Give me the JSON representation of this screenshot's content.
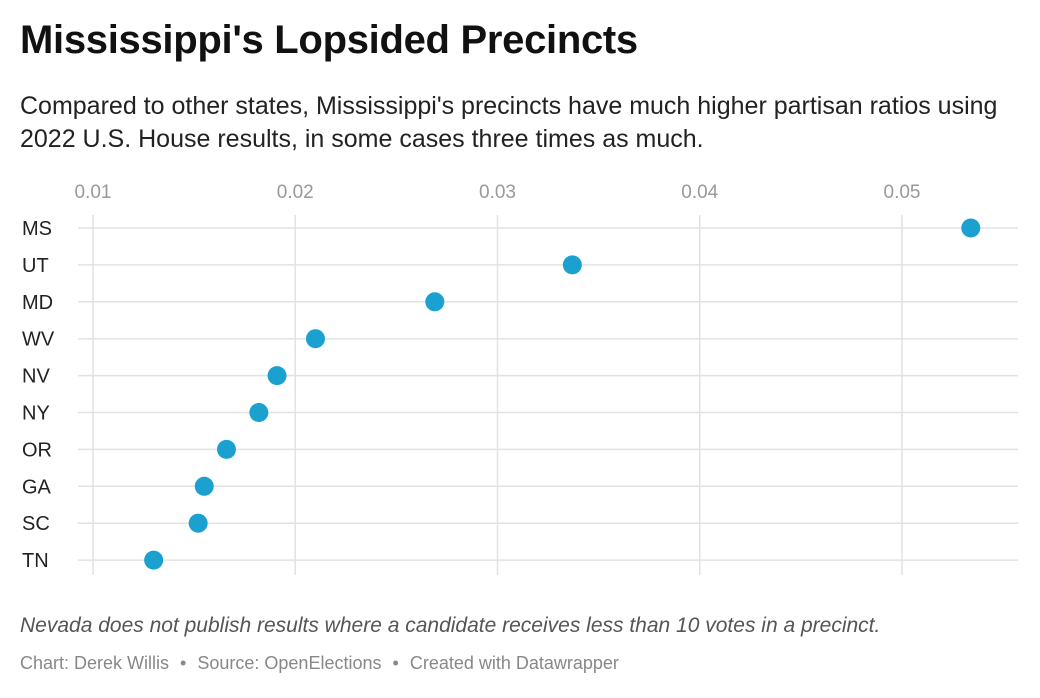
{
  "title": "Mississippi's Lopsided Precincts",
  "subtitle": "Compared to other states, Mississippi's precincts have much higher partisan ratios using 2022 U.S. House results, in some cases three times as much.",
  "note": "Nevada does not publish results where a candidate receives less than 10 votes in a precinct.",
  "footer": {
    "chart_credit": "Chart: Derek Willis",
    "source": "Source: OpenElections",
    "tool": "Created with Datawrapper",
    "separator": "•"
  },
  "colors": {
    "dot": "#1ba1cf",
    "grid": "#e2e2e2",
    "tick_text": "#999999",
    "label_text": "#222222"
  },
  "chart_data": {
    "type": "scatter",
    "categories": [
      "MS",
      "UT",
      "MD",
      "WV",
      "NV",
      "NY",
      "OR",
      "GA",
      "SC",
      "TN"
    ],
    "values": [
      0.0534,
      0.0337,
      0.0269,
      0.021,
      0.0191,
      0.0182,
      0.0166,
      0.0155,
      0.0152,
      0.013
    ],
    "x_ticks": [
      0.01,
      0.02,
      0.03,
      0.04,
      0.05
    ],
    "x_tick_labels": [
      "0.01",
      "0.02",
      "0.03",
      "0.04",
      "0.05"
    ],
    "xlim": [
      0.01,
      0.05
    ],
    "axis_position": "top",
    "grid": true,
    "legend": "none"
  }
}
